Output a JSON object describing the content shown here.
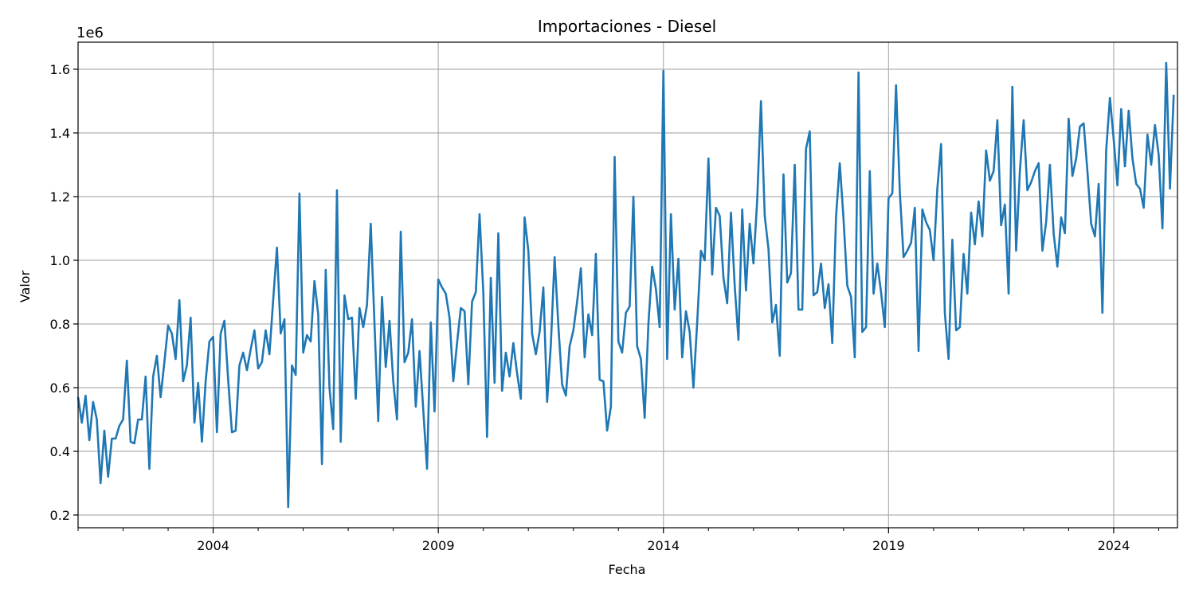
{
  "chart_data": {
    "type": "line",
    "title": "Importaciones - Diesel",
    "xlabel": "Fecha",
    "ylabel": "Valor",
    "y_offset_label": "1e6",
    "y_multiplier": 1000000,
    "x_start": "2001-01",
    "x_end": "2025-06",
    "xlim": [
      "2001-01",
      "2025-06"
    ],
    "ylim": [
      0.16,
      1.685
    ],
    "grid": true,
    "x_ticks": [
      {
        "date": "2004-01",
        "label": "2004"
      },
      {
        "date": "2009-01",
        "label": "2009"
      },
      {
        "date": "2014-01",
        "label": "2014"
      },
      {
        "date": "2019-01",
        "label": "2019"
      },
      {
        "date": "2024-01",
        "label": "2024"
      }
    ],
    "y_ticks": [
      {
        "value": 0.2,
        "label": "0.2"
      },
      {
        "value": 0.4,
        "label": "0.4"
      },
      {
        "value": 0.6,
        "label": "0.6"
      },
      {
        "value": 0.8,
        "label": "0.8"
      },
      {
        "value": 1.0,
        "label": "1.0"
      },
      {
        "value": 1.2,
        "label": "1.2"
      },
      {
        "value": 1.4,
        "label": "1.4"
      },
      {
        "value": 1.6,
        "label": "1.6"
      }
    ],
    "series": [
      {
        "color": "#1f77b4",
        "values": [
          0.57,
          0.49,
          0.575,
          0.435,
          0.555,
          0.5,
          0.3,
          0.465,
          0.32,
          0.44,
          0.44,
          0.48,
          0.5,
          0.685,
          0.43,
          0.425,
          0.5,
          0.5,
          0.635,
          0.345,
          0.635,
          0.7,
          0.57,
          0.68,
          0.795,
          0.77,
          0.69,
          0.875,
          0.62,
          0.67,
          0.82,
          0.49,
          0.615,
          0.43,
          0.62,
          0.745,
          0.76,
          0.46,
          0.77,
          0.81,
          0.625,
          0.46,
          0.465,
          0.67,
          0.71,
          0.655,
          0.72,
          0.78,
          0.66,
          0.68,
          0.78,
          0.705,
          0.875,
          1.04,
          0.77,
          0.815,
          0.225,
          0.67,
          0.64,
          1.21,
          0.71,
          0.765,
          0.745,
          0.935,
          0.83,
          0.36,
          0.97,
          0.6,
          0.47,
          1.22,
          0.43,
          0.89,
          0.815,
          0.82,
          0.565,
          0.85,
          0.79,
          0.86,
          1.115,
          0.8,
          0.495,
          0.885,
          0.665,
          0.81,
          0.62,
          0.5,
          1.09,
          0.68,
          0.71,
          0.815,
          0.54,
          0.715,
          0.53,
          0.345,
          0.805,
          0.525,
          0.94,
          0.915,
          0.895,
          0.82,
          0.62,
          0.74,
          0.85,
          0.84,
          0.61,
          0.87,
          0.9,
          1.145,
          0.9,
          0.445,
          0.945,
          0.615,
          1.085,
          0.59,
          0.71,
          0.635,
          0.74,
          0.645,
          0.565,
          1.135,
          1.03,
          0.77,
          0.705,
          0.775,
          0.915,
          0.555,
          0.735,
          1.01,
          0.795,
          0.61,
          0.575,
          0.73,
          0.78,
          0.87,
          0.975,
          0.695,
          0.83,
          0.765,
          1.02,
          0.625,
          0.62,
          0.465,
          0.54,
          1.325,
          0.745,
          0.71,
          0.835,
          0.855,
          1.2,
          0.73,
          0.69,
          0.505,
          0.8,
          0.98,
          0.91,
          0.79,
          1.595,
          0.69,
          1.145,
          0.845,
          1.005,
          0.695,
          0.84,
          0.775,
          0.6,
          0.805,
          1.03,
          1.0,
          1.32,
          0.955,
          1.165,
          1.14,
          0.945,
          0.865,
          1.15,
          0.92,
          0.75,
          1.16,
          0.905,
          1.115,
          0.99,
          1.19,
          1.5,
          1.14,
          1.035,
          0.805,
          0.86,
          0.7,
          1.27,
          0.93,
          0.96,
          1.3,
          0.845,
          0.845,
          1.35,
          1.405,
          0.89,
          0.9,
          0.99,
          0.85,
          0.925,
          0.74,
          1.135,
          1.305,
          1.13,
          0.92,
          0.885,
          0.695,
          1.59,
          0.775,
          0.79,
          1.28,
          0.895,
          0.99,
          0.9,
          0.79,
          1.195,
          1.21,
          1.55,
          1.215,
          1.01,
          1.03,
          1.055,
          1.165,
          0.715,
          1.16,
          1.12,
          1.095,
          1.0,
          1.225,
          1.365,
          0.835,
          0.69,
          1.065,
          0.78,
          0.79,
          1.02,
          0.895,
          1.15,
          1.05,
          1.185,
          1.075,
          1.345,
          1.25,
          1.28,
          1.44,
          1.11,
          1.175,
          0.895,
          1.545,
          1.03,
          1.28,
          1.44,
          1.22,
          1.245,
          1.28,
          1.305,
          1.03,
          1.12,
          1.3,
          1.085,
          0.98,
          1.135,
          1.085,
          1.445,
          1.265,
          1.32,
          1.42,
          1.43,
          1.28,
          1.115,
          1.075,
          1.24,
          0.835,
          1.345,
          1.51,
          1.38,
          1.235,
          1.475,
          1.295,
          1.47,
          1.32,
          1.24,
          1.225,
          1.165,
          1.395,
          1.3,
          1.425,
          1.33,
          1.1,
          1.62,
          1.225,
          1.52
        ]
      }
    ]
  }
}
